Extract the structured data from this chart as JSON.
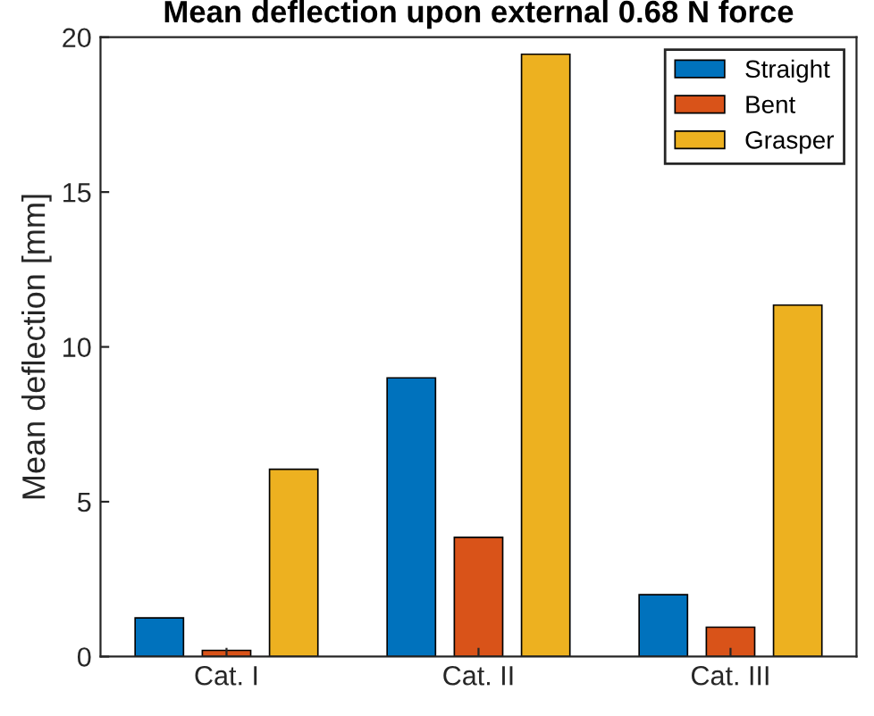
{
  "chart_data": {
    "type": "bar",
    "title": "Mean deflection upon external 0.68 N force",
    "ylabel": "Mean deflection [mm]",
    "categories": [
      "Cat. I",
      "Cat. II",
      "Cat. III"
    ],
    "series": [
      {
        "name": "Straight",
        "color": "#0072bd",
        "values": [
          1.25,
          9.0,
          2.0
        ]
      },
      {
        "name": "Bent",
        "color": "#d95319",
        "values": [
          0.2,
          3.85,
          0.95
        ]
      },
      {
        "name": "Grasper",
        "color": "#edb120",
        "values": [
          6.05,
          19.45,
          11.35
        ]
      }
    ],
    "ylim": [
      0,
      20
    ],
    "yticks": [
      0,
      5,
      10,
      15,
      20
    ],
    "grid": false,
    "legend": "top right"
  }
}
